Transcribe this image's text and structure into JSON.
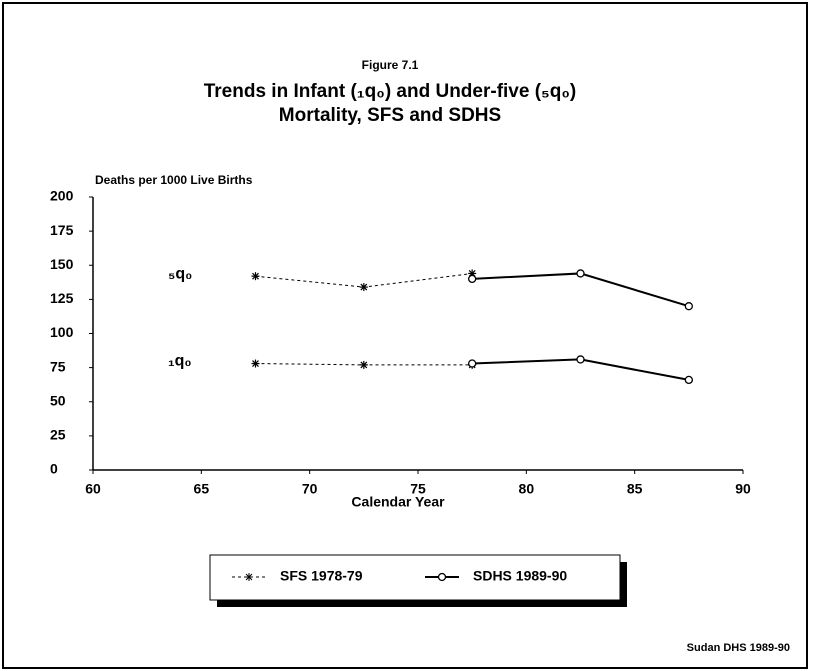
{
  "chart_data": {
    "type": "line",
    "figure_label": "Figure 7.1",
    "title": "Trends in Infant (₁q₀) and Under-five (₅q₀) Mortality, SFS and SDHS",
    "ylabel": "Deaths per 1000 Live Births",
    "xlabel": "Calendar Year",
    "source": "Sudan DHS 1989-90",
    "annotations": [
      "₅q₀",
      "₁q₀"
    ],
    "xlim": [
      60,
      90
    ],
    "xticks": [
      60,
      65,
      70,
      75,
      80,
      85,
      90
    ],
    "ylim": [
      0,
      200
    ],
    "yticks": [
      0,
      25,
      50,
      75,
      100,
      125,
      150,
      175,
      200
    ],
    "series": [
      {
        "name": "SFS 1978-79",
        "color": "#000000",
        "dash": true,
        "marker": "star",
        "x": [
          67.5,
          72.5,
          77.5
        ],
        "lines": [
          {
            "values": [
              142,
              134,
              144
            ]
          },
          {
            "values": [
              78,
              77,
              77
            ]
          }
        ]
      },
      {
        "name": "SDHS 1989-90",
        "color": "#000000",
        "dash": false,
        "marker": "circle",
        "x": [
          77.5,
          82.5,
          87.5
        ],
        "lines": [
          {
            "values": [
              140,
              144,
              120
            ]
          },
          {
            "values": [
              78,
              81,
              66
            ]
          }
        ]
      }
    ]
  }
}
